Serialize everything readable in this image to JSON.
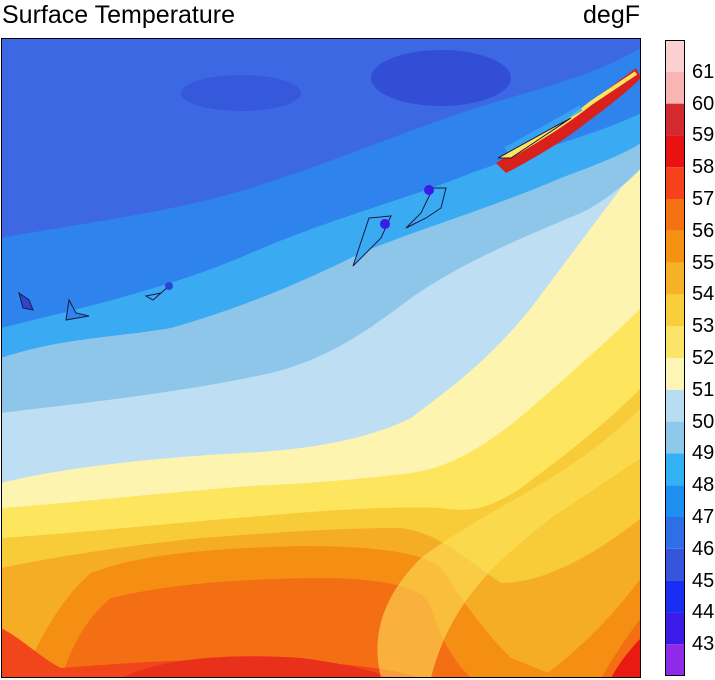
{
  "title": "Surface Temperature",
  "units": "degF",
  "colorbar": {
    "levels": [
      "43",
      "44",
      "45",
      "46",
      "47",
      "48",
      "49",
      "50",
      "51",
      "52",
      "53",
      "54",
      "55",
      "56",
      "57",
      "58",
      "59",
      "60",
      "61"
    ],
    "colors": [
      "#8f2ae8",
      "#3a1be8",
      "#1a2df2",
      "#3555dc",
      "#2e6ee6",
      "#1e8ef0",
      "#32b2f2",
      "#8ec8ea",
      "#b8dcf2",
      "#fdf5b3",
      "#fbe468",
      "#f8cf3b",
      "#f6b126",
      "#f69212",
      "#f57212",
      "#f5421a",
      "#e81212",
      "#d22a2e",
      "#f9b4b4",
      "#fbd0d0"
    ]
  },
  "map_colors": {
    "north": "#3d68e4",
    "north_mid": "#2e84ec",
    "band49": "#3aaaf2",
    "band50": "#8ec6ea",
    "band51": "#bedff3",
    "band52": "#fdf4b0",
    "band53": "#fde55e",
    "band54": "#f8cb38",
    "band55": "#f6ad26",
    "band56": "#f58f14",
    "band57": "#f46f14",
    "band58": "#f1461a",
    "band59": "#e81a12",
    "warm_ridge": "#d8201c",
    "cold_patch": "#2f45d0",
    "outline": "#1a1a40"
  }
}
